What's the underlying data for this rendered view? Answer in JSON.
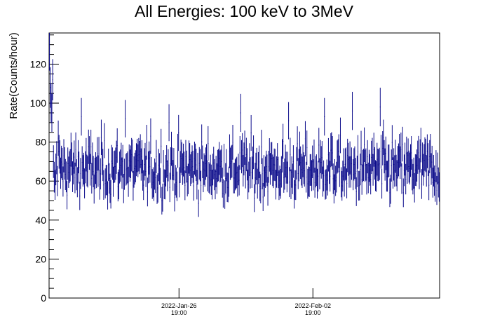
{
  "chart_data": {
    "type": "scatter",
    "title": "All Energies:  100 keV to 3MeV",
    "xlabel": "",
    "ylabel": "Rate(Counts/hour)",
    "ylim": [
      0,
      136
    ],
    "yticks": [
      0,
      20,
      40,
      60,
      80,
      100,
      120
    ],
    "xlim_hours": [
      0,
      490
    ],
    "xticks": [
      {
        "line1": "2022-Jan-26",
        "line2": "19:00"
      },
      {
        "line1": "2022-Feb-02",
        "line2": "19:00"
      }
    ],
    "x_start": "2022-Jan-20 00:00",
    "x_end": "2022-Feb-09 10:00",
    "x_tick_dates": [
      "2022-Jan-26 19:00",
      "2022-Feb-02 19:00"
    ],
    "series": [
      {
        "color": "#0a0a8a",
        "marker": "cross with error bars",
        "description": "Hourly count rate, ~490 bins, mean ~66, spread ~±10, with early outliers up to ~128",
        "head_values": [
          128,
          108,
          100,
          95,
          112,
          70,
          62,
          58,
          66,
          72,
          60,
          82
        ],
        "peak_values": [
          93,
          92,
          90,
          95,
          91,
          93,
          96,
          98
        ],
        "typical_mean": 66,
        "typical_spread": 8
      }
    ]
  }
}
